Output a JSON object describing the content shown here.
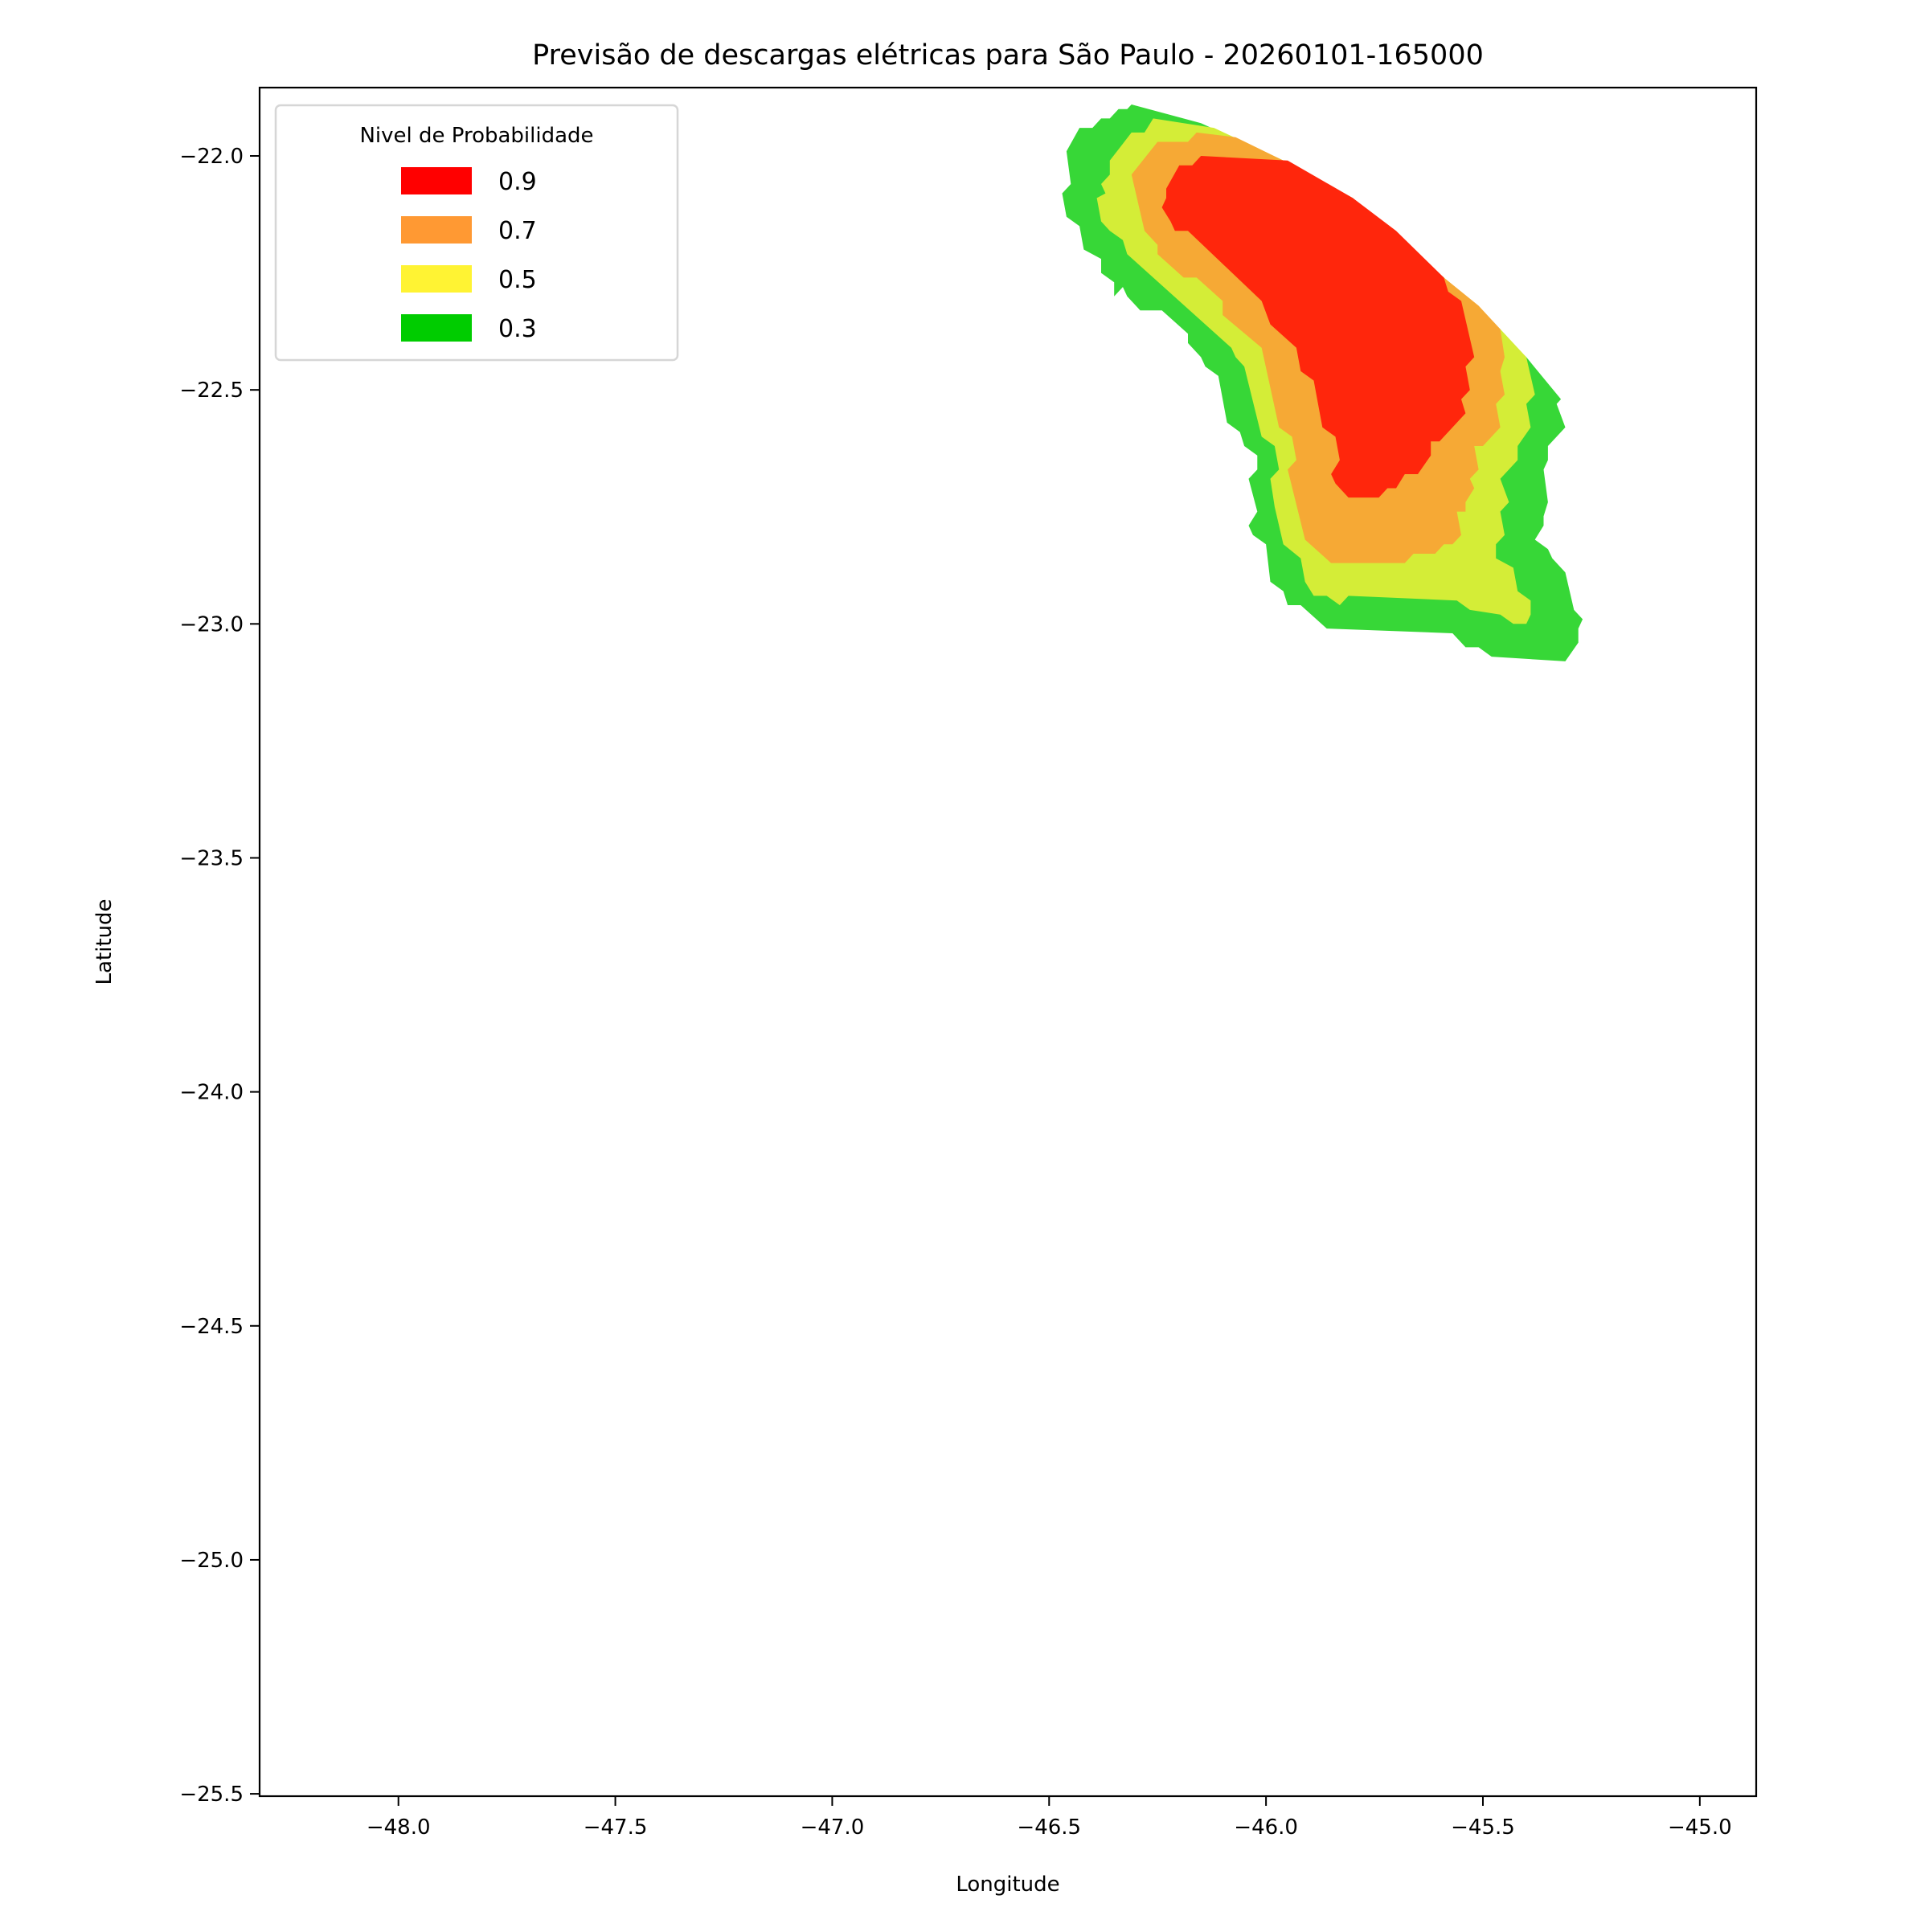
{
  "chart_data": {
    "type": "filled-contour",
    "title": "Previsão de descargas elétricas para São Paulo - 20260101-165000",
    "xlabel": "Longitude",
    "ylabel": "Latitude",
    "xlim": [
      -48.32,
      -44.87
    ],
    "ylim": [
      -25.505,
      -21.854
    ],
    "xticks": [
      -48.0,
      -47.5,
      -47.0,
      -46.5,
      -46.0,
      -45.5,
      -45.0
    ],
    "xtick_labels": [
      "−48.0",
      "−47.5",
      "−47.0",
      "−46.5",
      "−46.0",
      "−45.5",
      "−45.0"
    ],
    "yticks": [
      -22.0,
      -22.5,
      -23.0,
      -23.5,
      -24.0,
      -24.5,
      -25.0,
      -25.5
    ],
    "ytick_labels": [
      "−22.0",
      "−22.5",
      "−23.0",
      "−23.5",
      "−24.0",
      "−24.5",
      "−25.0",
      "−25.5"
    ],
    "grid": false,
    "legend": {
      "title": "Nivel de Probabilidade",
      "placement": "upper-left",
      "entries": [
        {
          "label": "0.9",
          "color": "#ff0000"
        },
        {
          "label": "0.7",
          "color": "#ff9933"
        },
        {
          "label": "0.5",
          "color": "#fff333"
        },
        {
          "label": "0.3",
          "color": "#00cc00"
        }
      ]
    },
    "levels": [
      {
        "level": 0.3,
        "fill": "#37d737",
        "polygon": [
          [
            -46.31,
            -21.89
          ],
          [
            -46.15,
            -21.93
          ],
          [
            -45.96,
            -22.01
          ],
          [
            -45.8,
            -22.09
          ],
          [
            -45.59,
            -22.26
          ],
          [
            -45.4,
            -22.43
          ],
          [
            -45.32,
            -22.52
          ],
          [
            -45.33,
            -22.53
          ],
          [
            -45.31,
            -22.58
          ],
          [
            -45.35,
            -22.62
          ],
          [
            -45.35,
            -22.65
          ],
          [
            -45.36,
            -22.67
          ],
          [
            -45.35,
            -22.74
          ],
          [
            -45.36,
            -22.77
          ],
          [
            -45.36,
            -22.79
          ],
          [
            -45.38,
            -22.82
          ],
          [
            -45.35,
            -22.84
          ],
          [
            -45.34,
            -22.86
          ],
          [
            -45.31,
            -22.89
          ],
          [
            -45.29,
            -22.97
          ],
          [
            -45.27,
            -22.99
          ],
          [
            -45.28,
            -23.01
          ],
          [
            -45.28,
            -23.04
          ],
          [
            -45.31,
            -23.08
          ],
          [
            -45.48,
            -23.07
          ],
          [
            -45.51,
            -23.05
          ],
          [
            -45.54,
            -23.05
          ],
          [
            -45.57,
            -23.02
          ],
          [
            -45.86,
            -23.01
          ],
          [
            -45.92,
            -22.96
          ],
          [
            -45.95,
            -22.96
          ],
          [
            -45.96,
            -22.93
          ],
          [
            -45.99,
            -22.91
          ],
          [
            -46.0,
            -22.83
          ],
          [
            -46.03,
            -22.81
          ],
          [
            -46.04,
            -22.79
          ],
          [
            -46.02,
            -22.76
          ],
          [
            -46.04,
            -22.69
          ],
          [
            -46.02,
            -22.67
          ],
          [
            -46.02,
            -22.64
          ],
          [
            -46.05,
            -22.62
          ],
          [
            -46.06,
            -22.59
          ],
          [
            -46.09,
            -22.57
          ],
          [
            -46.11,
            -22.47
          ],
          [
            -46.14,
            -22.45
          ],
          [
            -46.15,
            -22.43
          ],
          [
            -46.18,
            -22.4
          ],
          [
            -46.18,
            -22.38
          ],
          [
            -46.24,
            -22.33
          ],
          [
            -46.29,
            -22.33
          ],
          [
            -46.32,
            -22.3
          ],
          [
            -46.33,
            -22.28
          ],
          [
            -46.35,
            -22.3
          ],
          [
            -46.35,
            -22.27
          ],
          [
            -46.38,
            -22.25
          ],
          [
            -46.38,
            -22.22
          ],
          [
            -46.42,
            -22.2
          ],
          [
            -46.43,
            -22.15
          ],
          [
            -46.46,
            -22.13
          ],
          [
            -46.47,
            -22.08
          ],
          [
            -46.45,
            -22.06
          ],
          [
            -46.46,
            -21.99
          ],
          [
            -46.43,
            -21.94
          ],
          [
            -46.4,
            -21.94
          ],
          [
            -46.38,
            -21.92
          ],
          [
            -46.36,
            -21.92
          ],
          [
            -46.34,
            -21.9
          ],
          [
            -46.32,
            -21.9
          ]
        ]
      },
      {
        "level": 0.5,
        "fill": "#d4ed37",
        "polygon": [
          [
            -46.26,
            -21.92
          ],
          [
            -46.12,
            -21.94
          ],
          [
            -45.96,
            -22.01
          ],
          [
            -45.59,
            -22.26
          ],
          [
            -45.46,
            -22.37
          ],
          [
            -45.4,
            -22.43
          ],
          [
            -45.38,
            -22.51
          ],
          [
            -45.4,
            -22.53
          ],
          [
            -45.39,
            -22.58
          ],
          [
            -45.42,
            -22.62
          ],
          [
            -45.42,
            -22.65
          ],
          [
            -45.46,
            -22.69
          ],
          [
            -45.44,
            -22.74
          ],
          [
            -45.46,
            -22.76
          ],
          [
            -45.45,
            -22.81
          ],
          [
            -45.47,
            -22.83
          ],
          [
            -45.47,
            -22.86
          ],
          [
            -45.43,
            -22.88
          ],
          [
            -45.42,
            -22.93
          ],
          [
            -45.39,
            -22.95
          ],
          [
            -45.39,
            -22.98
          ],
          [
            -45.4,
            -23.0
          ],
          [
            -45.43,
            -23.0
          ],
          [
            -45.46,
            -22.98
          ],
          [
            -45.53,
            -22.97
          ],
          [
            -45.56,
            -22.95
          ],
          [
            -45.81,
            -22.94
          ],
          [
            -45.83,
            -22.96
          ],
          [
            -45.86,
            -22.94
          ],
          [
            -45.89,
            -22.94
          ],
          [
            -45.91,
            -22.91
          ],
          [
            -45.92,
            -22.86
          ],
          [
            -45.96,
            -22.83
          ],
          [
            -45.98,
            -22.75
          ],
          [
            -45.99,
            -22.69
          ],
          [
            -45.97,
            -22.67
          ],
          [
            -45.98,
            -22.62
          ],
          [
            -46.01,
            -22.6
          ],
          [
            -46.05,
            -22.45
          ],
          [
            -46.07,
            -22.43
          ],
          [
            -46.08,
            -22.41
          ],
          [
            -46.32,
            -22.21
          ],
          [
            -46.33,
            -22.18
          ],
          [
            -46.36,
            -22.16
          ],
          [
            -46.38,
            -22.14
          ],
          [
            -46.39,
            -22.09
          ],
          [
            -46.37,
            -22.08
          ],
          [
            -46.38,
            -22.06
          ],
          [
            -46.36,
            -22.04
          ],
          [
            -46.36,
            -22.01
          ],
          [
            -46.31,
            -21.95
          ],
          [
            -46.28,
            -21.95
          ]
        ]
      },
      {
        "level": 0.7,
        "fill": "#f6a935",
        "polygon": [
          [
            -46.16,
            -21.95
          ],
          [
            -46.07,
            -21.96
          ],
          [
            -45.96,
            -22.01
          ],
          [
            -45.59,
            -22.26
          ],
          [
            -45.51,
            -22.32
          ],
          [
            -45.46,
            -22.37
          ],
          [
            -45.45,
            -22.43
          ],
          [
            -45.46,
            -22.46
          ],
          [
            -45.45,
            -22.51
          ],
          [
            -45.47,
            -22.53
          ],
          [
            -45.46,
            -22.58
          ],
          [
            -45.5,
            -22.62
          ],
          [
            -45.52,
            -22.62
          ],
          [
            -45.51,
            -22.67
          ],
          [
            -45.53,
            -22.69
          ],
          [
            -45.52,
            -22.71
          ],
          [
            -45.54,
            -22.74
          ],
          [
            -45.54,
            -22.76
          ],
          [
            -45.56,
            -22.76
          ],
          [
            -45.55,
            -22.81
          ],
          [
            -45.57,
            -22.83
          ],
          [
            -45.59,
            -22.83
          ],
          [
            -45.61,
            -22.85
          ],
          [
            -45.66,
            -22.85
          ],
          [
            -45.68,
            -22.87
          ],
          [
            -45.85,
            -22.87
          ],
          [
            -45.91,
            -22.82
          ],
          [
            -45.95,
            -22.67
          ],
          [
            -45.93,
            -22.65
          ],
          [
            -45.94,
            -22.6
          ],
          [
            -45.97,
            -22.58
          ],
          [
            -46.01,
            -22.41
          ],
          [
            -46.1,
            -22.34
          ],
          [
            -46.1,
            -22.31
          ],
          [
            -46.16,
            -22.26
          ],
          [
            -46.19,
            -22.26
          ],
          [
            -46.25,
            -22.21
          ],
          [
            -46.25,
            -22.19
          ],
          [
            -46.28,
            -22.16
          ],
          [
            -46.31,
            -22.04
          ],
          [
            -46.25,
            -21.97
          ],
          [
            -46.18,
            -21.97
          ]
        ]
      },
      {
        "level": 0.9,
        "fill": "#ff260c",
        "polygon": [
          [
            -46.15,
            -22.0
          ],
          [
            -45.95,
            -22.01
          ],
          [
            -45.8,
            -22.09
          ],
          [
            -45.7,
            -22.16
          ],
          [
            -45.59,
            -22.26
          ],
          [
            -45.58,
            -22.29
          ],
          [
            -45.55,
            -22.31
          ],
          [
            -45.52,
            -22.43
          ],
          [
            -45.54,
            -22.45
          ],
          [
            -45.53,
            -22.5
          ],
          [
            -45.55,
            -22.52
          ],
          [
            -45.54,
            -22.55
          ],
          [
            -45.6,
            -22.61
          ],
          [
            -45.62,
            -22.61
          ],
          [
            -45.62,
            -22.64
          ],
          [
            -45.65,
            -22.68
          ],
          [
            -45.68,
            -22.68
          ],
          [
            -45.7,
            -22.71
          ],
          [
            -45.72,
            -22.71
          ],
          [
            -45.74,
            -22.73
          ],
          [
            -45.81,
            -22.73
          ],
          [
            -45.84,
            -22.7
          ],
          [
            -45.85,
            -22.68
          ],
          [
            -45.83,
            -22.65
          ],
          [
            -45.84,
            -22.6
          ],
          [
            -45.87,
            -22.58
          ],
          [
            -45.89,
            -22.48
          ],
          [
            -45.92,
            -22.46
          ],
          [
            -45.93,
            -22.41
          ],
          [
            -45.99,
            -22.36
          ],
          [
            -46.01,
            -22.31
          ],
          [
            -46.18,
            -22.16
          ],
          [
            -46.21,
            -22.16
          ],
          [
            -46.22,
            -22.14
          ],
          [
            -46.24,
            -22.11
          ],
          [
            -46.23,
            -22.09
          ],
          [
            -46.23,
            -22.07
          ],
          [
            -46.2,
            -22.02
          ],
          [
            -46.17,
            -22.02
          ]
        ]
      }
    ]
  }
}
